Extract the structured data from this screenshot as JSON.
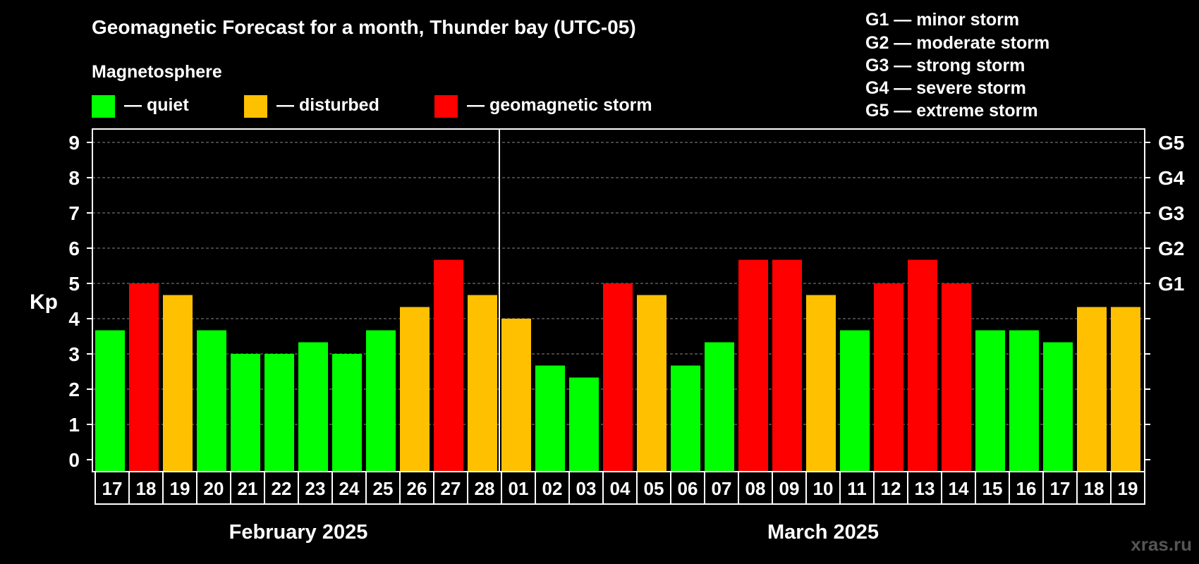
{
  "header": {
    "title": "Geomagnetic Forecast for a month, Thunder bay (UTC-05)",
    "section_label": "Magnetosphere",
    "watermark": "xras.ru"
  },
  "legend": [
    {
      "key": "quiet",
      "label": "— quiet",
      "color": "#00ff00"
    },
    {
      "key": "disturbed",
      "label": "— disturbed",
      "color": "#ffc000"
    },
    {
      "key": "storm",
      "label": "— geomagnetic storm",
      "color": "#ff0000"
    }
  ],
  "storm_scale": [
    "G1 — minor storm",
    "G2 — moderate storm",
    "G3 — strong storm",
    "G4 — severe storm",
    "G5 — extreme storm"
  ],
  "chart_data": {
    "type": "bar",
    "ylabel": "Kp",
    "ylim": [
      0,
      9
    ],
    "yticks": [
      "0",
      "1",
      "2",
      "3",
      "4",
      "5",
      "6",
      "7",
      "8",
      "9"
    ],
    "right_axis": [
      {
        "value": 5,
        "label": "G1"
      },
      {
        "value": 6,
        "label": "G2"
      },
      {
        "value": 7,
        "label": "G3"
      },
      {
        "value": 8,
        "label": "G4"
      },
      {
        "value": 9,
        "label": "G5"
      }
    ],
    "grid": "dashed horizontal",
    "months": [
      {
        "label": "February 2025",
        "start": 0,
        "end": 11
      },
      {
        "label": "March 2025",
        "start": 12,
        "end": 30
      }
    ],
    "categories": [
      "17",
      "18",
      "19",
      "20",
      "21",
      "22",
      "23",
      "24",
      "25",
      "26",
      "27",
      "28",
      "01",
      "02",
      "03",
      "04",
      "05",
      "06",
      "07",
      "08",
      "09",
      "10",
      "11",
      "12",
      "13",
      "14",
      "15",
      "16",
      "17",
      "18",
      "19"
    ],
    "values": [
      3.67,
      5.0,
      4.67,
      3.67,
      3.0,
      3.0,
      3.33,
      3.0,
      3.67,
      4.33,
      5.67,
      4.67,
      4.0,
      2.67,
      2.33,
      5.0,
      4.67,
      2.67,
      3.33,
      5.67,
      5.67,
      4.67,
      3.67,
      5.0,
      5.67,
      5.0,
      3.67,
      3.67,
      3.33,
      4.33,
      4.33
    ],
    "status": [
      "quiet",
      "storm",
      "disturbed",
      "quiet",
      "quiet",
      "quiet",
      "quiet",
      "quiet",
      "quiet",
      "disturbed",
      "storm",
      "disturbed",
      "disturbed",
      "quiet",
      "quiet",
      "storm",
      "disturbed",
      "quiet",
      "quiet",
      "storm",
      "storm",
      "disturbed",
      "quiet",
      "storm",
      "storm",
      "storm",
      "quiet",
      "quiet",
      "quiet",
      "disturbed",
      "disturbed"
    ],
    "colors": {
      "quiet": "#00ff00",
      "disturbed": "#ffc000",
      "storm": "#ff0000"
    }
  }
}
